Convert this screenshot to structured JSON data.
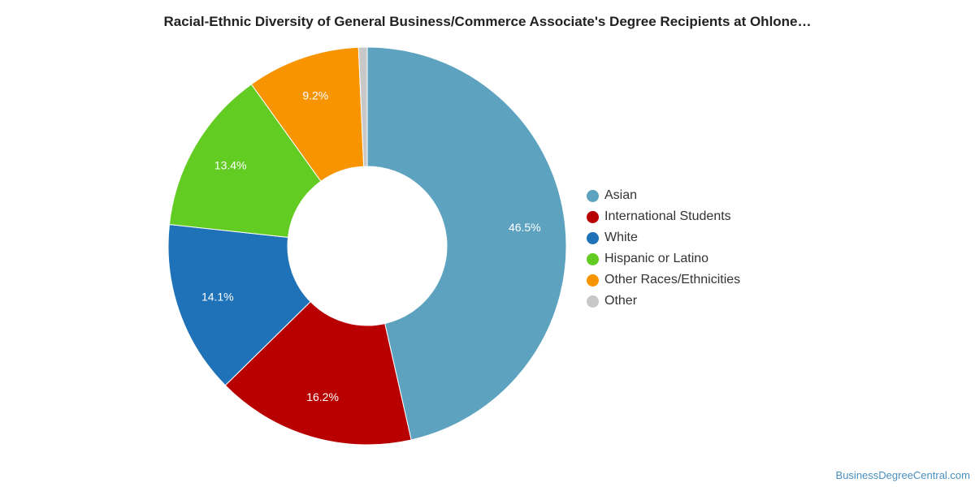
{
  "chart_data": {
    "type": "pie",
    "title": "Racial-Ethnic Diversity of General Business/Commerce Associate's Degree Recipients at Ohlone…",
    "style": "donut",
    "legend_position": "right",
    "slices": [
      {
        "name": "Asian",
        "value": 46.5,
        "label": "46.5%",
        "color": "#5da3c0"
      },
      {
        "name": "International Students",
        "value": 16.2,
        "label": "16.2%",
        "color": "#b80000"
      },
      {
        "name": "White",
        "value": 14.1,
        "label": "14.1%",
        "color": "#1f72b8"
      },
      {
        "name": "Hispanic or Latino",
        "value": 13.4,
        "label": "13.4%",
        "color": "#62cc22"
      },
      {
        "name": "Other Races/Ethnicities",
        "value": 9.2,
        "label": "9.2%",
        "color": "#f79400"
      },
      {
        "name": "Other",
        "value": 0.7,
        "label": "",
        "color": "#c8c8c8"
      }
    ]
  },
  "watermark": "BusinessDegreeCentral.com"
}
